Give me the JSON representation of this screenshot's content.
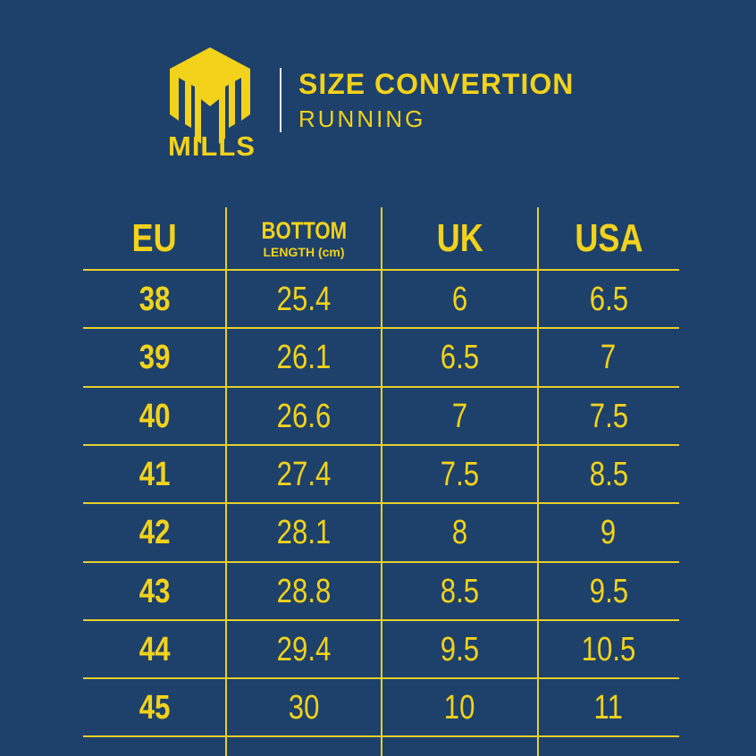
{
  "brand": {
    "name": "MILLS",
    "colors": {
      "background": "#1d416b",
      "accent": "#f2d21b"
    }
  },
  "header": {
    "title": "SIZE CONVERTION",
    "subtitle": "RUNNING"
  },
  "table": {
    "columns": [
      {
        "label": "EU"
      },
      {
        "label": "BOTTOM",
        "sublabel": "LENGTH (cm)"
      },
      {
        "label": "UK"
      },
      {
        "label": "USA"
      }
    ],
    "rows": [
      [
        "38",
        "25.4",
        "6",
        "6.5"
      ],
      [
        "39",
        "26.1",
        "6.5",
        "7"
      ],
      [
        "40",
        "26.6",
        "7",
        "7.5"
      ],
      [
        "41",
        "27.4",
        "7.5",
        "8.5"
      ],
      [
        "42",
        "28.1",
        "8",
        "9"
      ],
      [
        "43",
        "28.8",
        "8.5",
        "9.5"
      ],
      [
        "44",
        "29.4",
        "9.5",
        "10.5"
      ],
      [
        "45",
        "30",
        "10",
        "11"
      ]
    ]
  }
}
